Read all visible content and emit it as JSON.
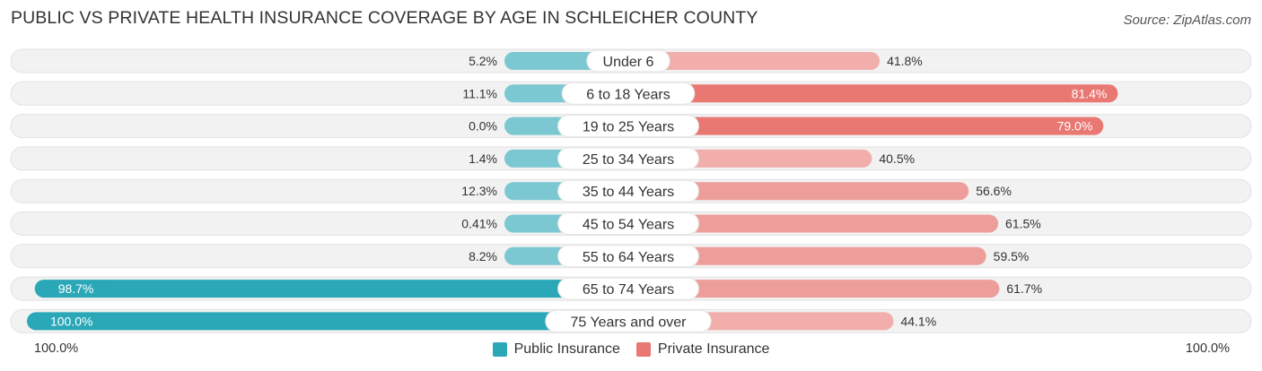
{
  "header": {
    "title": "PUBLIC VS PRIVATE HEALTH INSURANCE COVERAGE BY AGE IN SCHLEICHER COUNTY",
    "source": "Source: ZipAtlas.com"
  },
  "colors": {
    "public_strong": "#2aa8b8",
    "public_light": "#7cc8d2",
    "private_strong": "#e97873",
    "private_light": "#f1aeab",
    "row_bg": "#f2f2f2"
  },
  "axis": {
    "left_label": "100.0%",
    "right_label": "100.0%"
  },
  "legend": {
    "public": "Public Insurance",
    "private": "Private Insurance"
  },
  "chart_data": {
    "type": "bar",
    "orientation": "horizontal-diverging",
    "title": "PUBLIC VS PRIVATE HEALTH INSURANCE COVERAGE BY AGE IN SCHLEICHER COUNTY",
    "xlim": [
      -100,
      100
    ],
    "categories": [
      "Under 6",
      "6 to 18 Years",
      "19 to 25 Years",
      "25 to 34 Years",
      "35 to 44 Years",
      "45 to 54 Years",
      "55 to 64 Years",
      "65 to 74 Years",
      "75 Years and over"
    ],
    "series": [
      {
        "name": "Public Insurance",
        "values": [
          5.2,
          11.1,
          0.0,
          1.4,
          12.3,
          0.41,
          8.2,
          98.7,
          100.0
        ],
        "labels": [
          "5.2%",
          "11.1%",
          "0.0%",
          "1.4%",
          "12.3%",
          "0.41%",
          "8.2%",
          "98.7%",
          "100.0%"
        ]
      },
      {
        "name": "Private Insurance",
        "values": [
          41.8,
          81.4,
          79.0,
          40.5,
          56.6,
          61.5,
          59.5,
          61.7,
          44.1
        ],
        "labels": [
          "41.8%",
          "81.4%",
          "79.0%",
          "40.5%",
          "56.6%",
          "61.5%",
          "59.5%",
          "61.7%",
          "44.1%"
        ]
      }
    ],
    "legend_position": "bottom-center"
  }
}
